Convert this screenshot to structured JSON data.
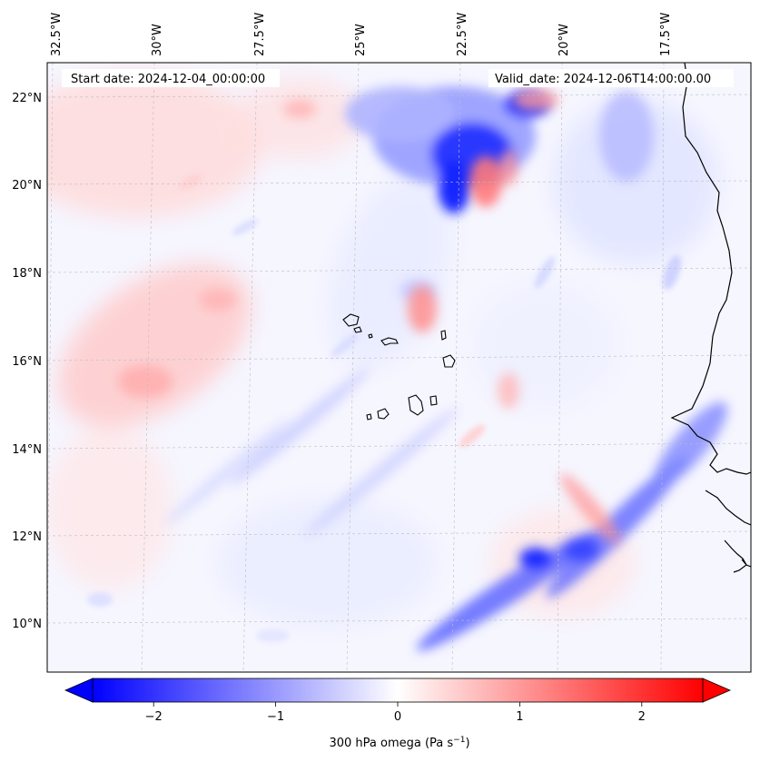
{
  "header": {
    "start_date": "Start date: 2024-12-04_00:00:00",
    "valid_date": "Valid_date: 2024-12-06T14:00:00.00"
  },
  "longitude_labels": [
    "32.5°W",
    "30°W",
    "27.5°W",
    "25°W",
    "22.5°W",
    "20°W",
    "17.5°W"
  ],
  "latitude_labels": [
    "22°N",
    "20°N",
    "18°N",
    "16°N",
    "14°N",
    "12°N",
    "10°N"
  ],
  "colorbar": {
    "label": "300 hPa omega (Pa s",
    "label_sup": "−1",
    "label_close": ")",
    "ticks": [
      "−2",
      "−1",
      "0",
      "1",
      "2"
    ],
    "tick_values": [
      -2,
      -1,
      0,
      1,
      2
    ],
    "range": [
      -2.5,
      2.5
    ],
    "colormap": "bwr",
    "colors": {
      "min": "#0000ff",
      "mid": "#ffffff",
      "max": "#ff0000"
    }
  },
  "map": {
    "field": "300 hPa omega",
    "grid": true,
    "coastline_color": "#000000"
  }
}
